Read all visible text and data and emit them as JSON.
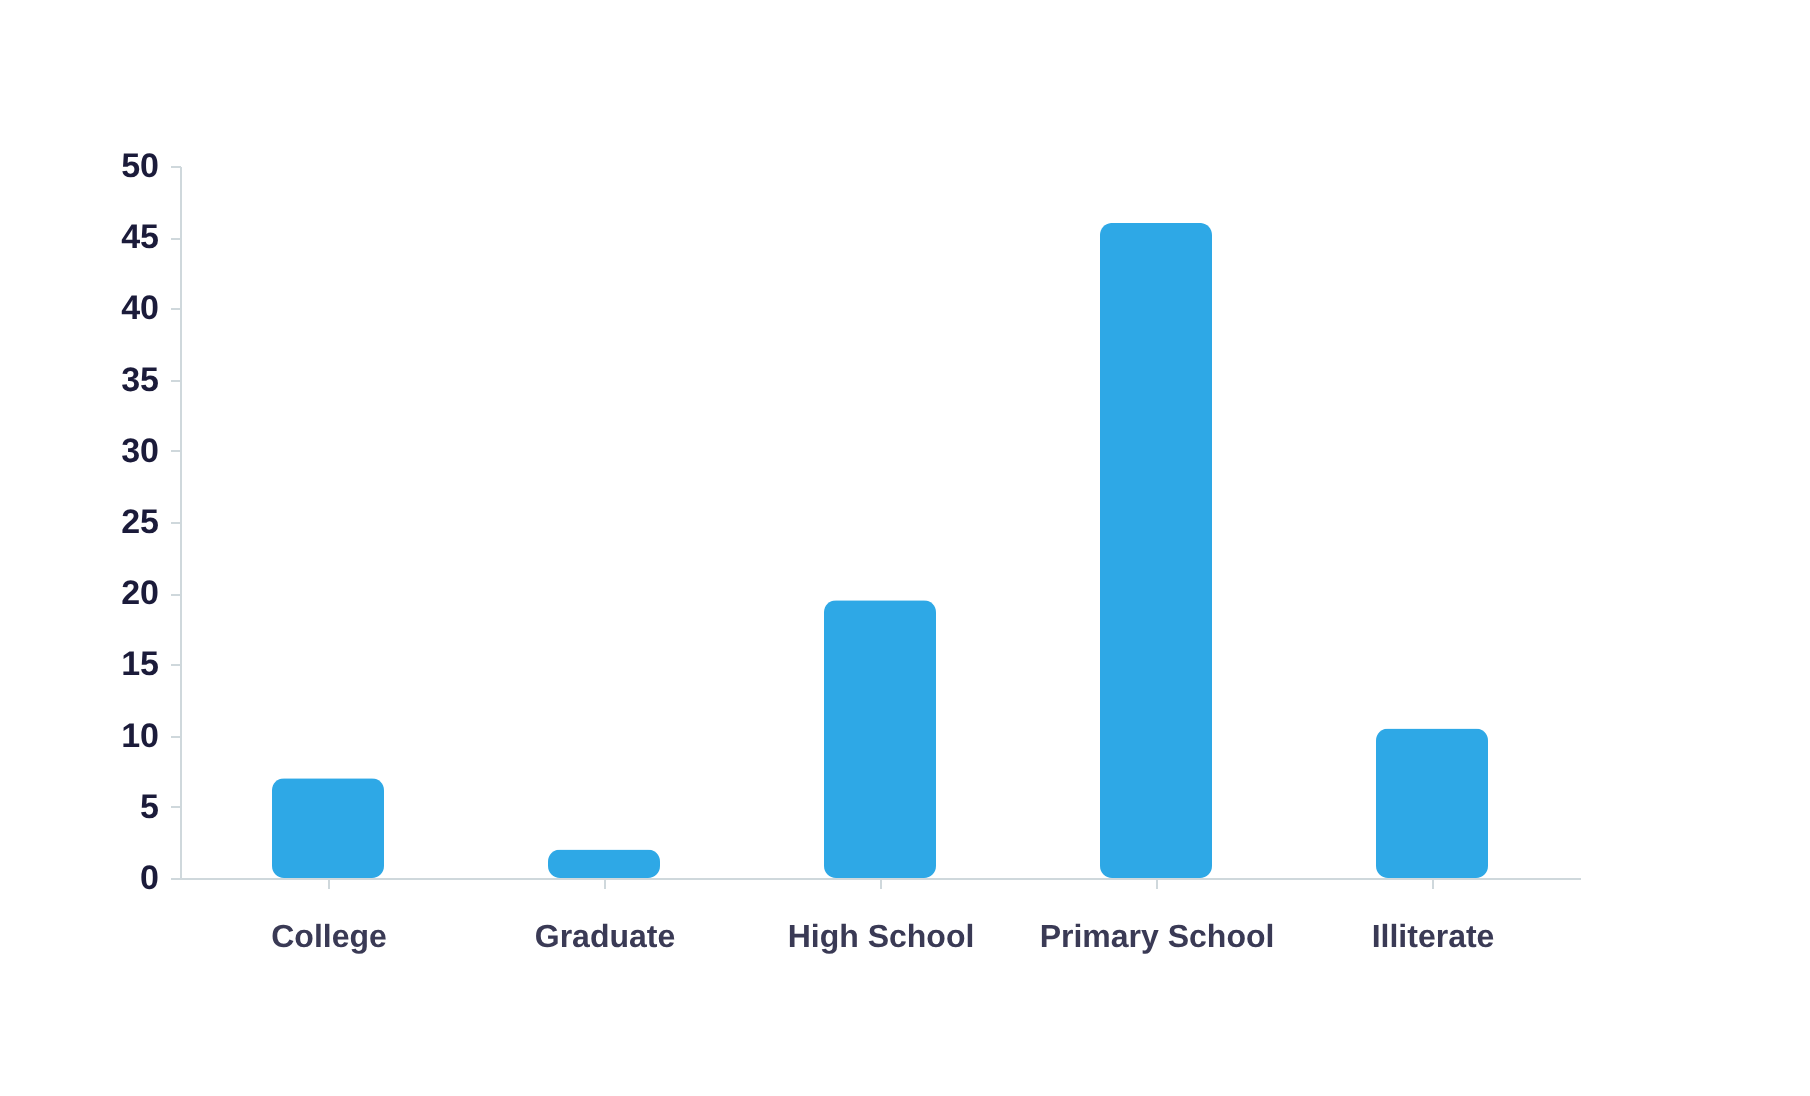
{
  "chart_data": {
    "type": "bar",
    "categories": [
      "College",
      "Graduate",
      "High School",
      "Primary School",
      "Illiterate"
    ],
    "values": [
      7,
      2,
      19.5,
      46,
      10.5
    ],
    "color": "#2ea8e6",
    "ylim": [
      0,
      50
    ],
    "yticks": [
      0,
      5,
      10,
      15,
      20,
      25,
      30,
      35,
      40,
      45,
      50
    ],
    "grid": false
  }
}
